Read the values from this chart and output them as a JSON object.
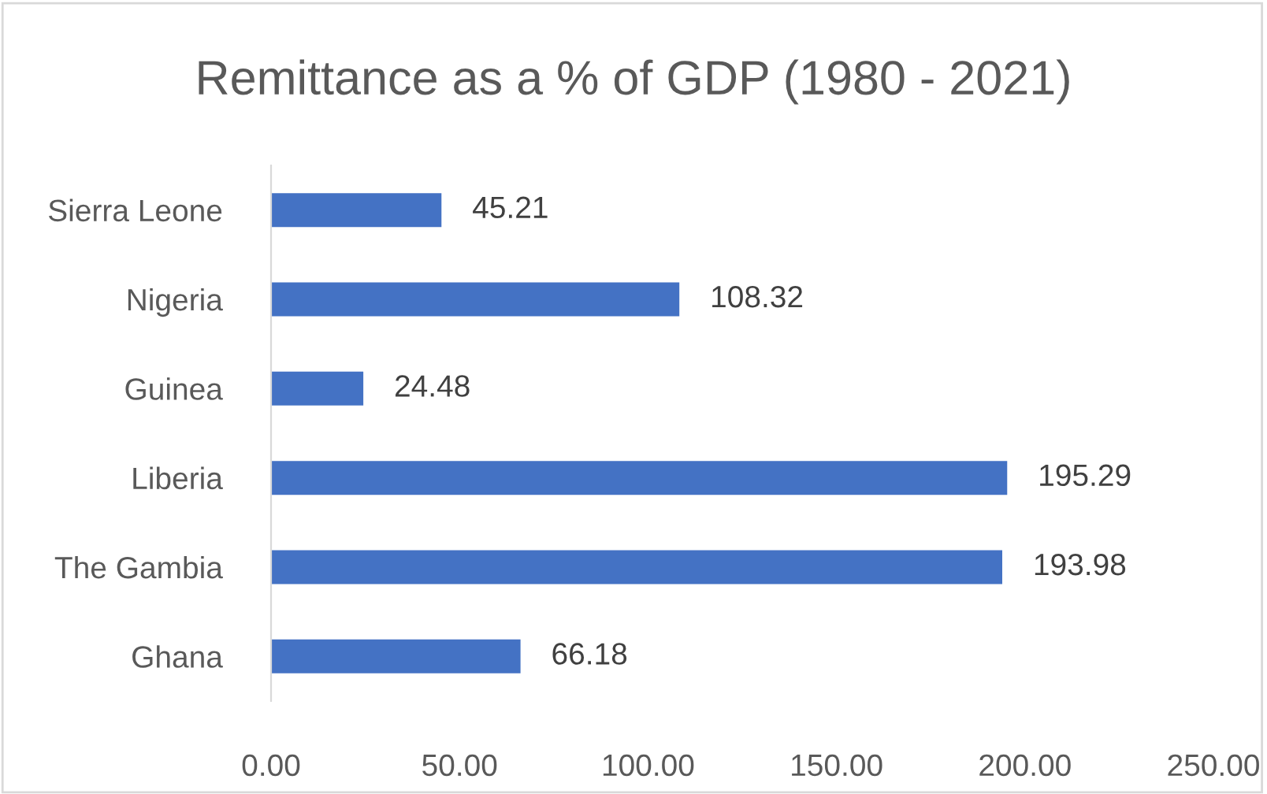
{
  "chart_data": {
    "type": "bar",
    "orientation": "horizontal",
    "title": "Remittance as a % of GDP (1980 - 2021)",
    "categories": [
      "Sierra Leone",
      "Nigeria",
      "Guinea",
      "Liberia",
      "The Gambia",
      "Ghana"
    ],
    "values": [
      45.21,
      108.32,
      24.48,
      195.29,
      193.98,
      66.18
    ],
    "color": "#4472c4",
    "data_labels": true,
    "xlim": [
      0,
      250
    ],
    "xticks": [
      {
        "value": 0,
        "label": "0.00"
      },
      {
        "value": 50,
        "label": "50.00"
      },
      {
        "value": 100,
        "label": "100.00"
      },
      {
        "value": 150,
        "label": "150.00"
      },
      {
        "value": 200,
        "label": "200.00"
      },
      {
        "value": 250,
        "label": "250.00"
      }
    ],
    "grid": false,
    "legend": false
  }
}
